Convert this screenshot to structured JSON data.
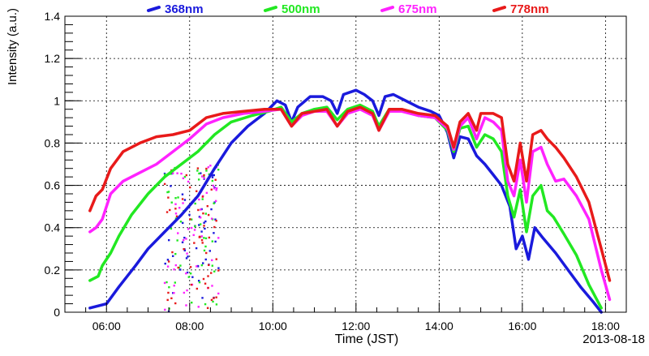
{
  "chart_data": {
    "type": "line",
    "title": "",
    "xlabel": "Time (JST)",
    "ylabel": "Intensity (a.u.)",
    "date_label": "2013-08-18",
    "xlim": [
      5.0,
      18.5
    ],
    "ylim": [
      0,
      1.4
    ],
    "grid": true,
    "legend_position": "top",
    "x_ticks": [
      {
        "v": 6,
        "label": "06:00"
      },
      {
        "v": 8,
        "label": "08:00"
      },
      {
        "v": 10,
        "label": "10:00"
      },
      {
        "v": 12,
        "label": "12:00"
      },
      {
        "v": 14,
        "label": "14:00"
      },
      {
        "v": 16,
        "label": "16:00"
      },
      {
        "v": 18,
        "label": "18:00"
      }
    ],
    "y_ticks": [
      {
        "v": 0,
        "label": "0"
      },
      {
        "v": 0.2,
        "label": "0.2"
      },
      {
        "v": 0.4,
        "label": "0.4"
      },
      {
        "v": 0.6,
        "label": "0.6"
      },
      {
        "v": 0.8,
        "label": "0.8"
      },
      {
        "v": 1.0,
        "label": "1"
      },
      {
        "v": 1.2,
        "label": "1.2"
      },
      {
        "v": 1.4,
        "label": "1.4"
      }
    ],
    "series": [
      {
        "name": "368nm",
        "color": "#1a1adc",
        "points": [
          [
            5.6,
            0.02
          ],
          [
            6.0,
            0.04
          ],
          [
            6.3,
            0.12
          ],
          [
            6.7,
            0.22
          ],
          [
            7.0,
            0.3
          ],
          [
            7.4,
            0.38
          ],
          [
            7.8,
            0.46
          ],
          [
            8.2,
            0.55
          ],
          [
            8.6,
            0.68
          ],
          [
            9.0,
            0.8
          ],
          [
            9.4,
            0.88
          ],
          [
            9.8,
            0.94
          ],
          [
            10.1,
            1.0
          ],
          [
            10.3,
            0.98
          ],
          [
            10.45,
            0.9
          ],
          [
            10.6,
            0.97
          ],
          [
            10.9,
            1.02
          ],
          [
            11.2,
            1.02
          ],
          [
            11.4,
            1.0
          ],
          [
            11.55,
            0.94
          ],
          [
            11.7,
            1.03
          ],
          [
            12.0,
            1.05
          ],
          [
            12.2,
            1.03
          ],
          [
            12.4,
            1.0
          ],
          [
            12.55,
            0.93
          ],
          [
            12.7,
            1.02
          ],
          [
            12.9,
            1.03
          ],
          [
            13.2,
            1.0
          ],
          [
            13.5,
            0.97
          ],
          [
            13.8,
            0.95
          ],
          [
            14.0,
            0.93
          ],
          [
            14.2,
            0.85
          ],
          [
            14.35,
            0.73
          ],
          [
            14.5,
            0.83
          ],
          [
            14.7,
            0.82
          ],
          [
            14.9,
            0.74
          ],
          [
            15.1,
            0.7
          ],
          [
            15.3,
            0.65
          ],
          [
            15.5,
            0.6
          ],
          [
            15.7,
            0.5
          ],
          [
            15.85,
            0.3
          ],
          [
            16.0,
            0.36
          ],
          [
            16.15,
            0.25
          ],
          [
            16.3,
            0.4
          ],
          [
            16.5,
            0.35
          ],
          [
            16.8,
            0.28
          ],
          [
            17.1,
            0.2
          ],
          [
            17.4,
            0.12
          ],
          [
            17.7,
            0.05
          ],
          [
            17.9,
            0.0
          ]
        ]
      },
      {
        "name": "500nm",
        "color": "#22e822",
        "points": [
          [
            5.6,
            0.15
          ],
          [
            5.8,
            0.17
          ],
          [
            5.9,
            0.22
          ],
          [
            6.1,
            0.28
          ],
          [
            6.3,
            0.36
          ],
          [
            6.6,
            0.46
          ],
          [
            7.0,
            0.56
          ],
          [
            7.4,
            0.64
          ],
          [
            7.8,
            0.7
          ],
          [
            8.2,
            0.76
          ],
          [
            8.6,
            0.84
          ],
          [
            9.0,
            0.9
          ],
          [
            9.5,
            0.93
          ],
          [
            9.9,
            0.95
          ],
          [
            10.2,
            0.97
          ],
          [
            10.45,
            0.9
          ],
          [
            10.7,
            0.94
          ],
          [
            11.0,
            0.96
          ],
          [
            11.3,
            0.97
          ],
          [
            11.55,
            0.91
          ],
          [
            11.8,
            0.96
          ],
          [
            12.1,
            0.98
          ],
          [
            12.4,
            0.95
          ],
          [
            12.55,
            0.88
          ],
          [
            12.8,
            0.96
          ],
          [
            13.1,
            0.96
          ],
          [
            13.5,
            0.93
          ],
          [
            13.9,
            0.92
          ],
          [
            14.2,
            0.86
          ],
          [
            14.35,
            0.76
          ],
          [
            14.5,
            0.87
          ],
          [
            14.7,
            0.88
          ],
          [
            14.9,
            0.78
          ],
          [
            15.1,
            0.84
          ],
          [
            15.3,
            0.82
          ],
          [
            15.5,
            0.76
          ],
          [
            15.65,
            0.55
          ],
          [
            15.8,
            0.45
          ],
          [
            15.95,
            0.58
          ],
          [
            16.1,
            0.38
          ],
          [
            16.25,
            0.55
          ],
          [
            16.45,
            0.6
          ],
          [
            16.6,
            0.48
          ],
          [
            16.75,
            0.45
          ],
          [
            17.0,
            0.37
          ],
          [
            17.3,
            0.27
          ],
          [
            17.6,
            0.13
          ],
          [
            17.9,
            0.02
          ]
        ]
      },
      {
        "name": "675nm",
        "color": "#ff22ff",
        "points": [
          [
            5.6,
            0.38
          ],
          [
            5.75,
            0.4
          ],
          [
            5.9,
            0.44
          ],
          [
            6.1,
            0.56
          ],
          [
            6.4,
            0.62
          ],
          [
            6.8,
            0.66
          ],
          [
            7.2,
            0.7
          ],
          [
            7.6,
            0.76
          ],
          [
            8.0,
            0.82
          ],
          [
            8.4,
            0.89
          ],
          [
            8.8,
            0.92
          ],
          [
            9.3,
            0.94
          ],
          [
            9.8,
            0.95
          ],
          [
            10.2,
            0.96
          ],
          [
            10.45,
            0.88
          ],
          [
            10.7,
            0.93
          ],
          [
            11.0,
            0.95
          ],
          [
            11.3,
            0.95
          ],
          [
            11.55,
            0.88
          ],
          [
            11.8,
            0.94
          ],
          [
            12.1,
            0.96
          ],
          [
            12.4,
            0.93
          ],
          [
            12.55,
            0.86
          ],
          [
            12.8,
            0.95
          ],
          [
            13.1,
            0.95
          ],
          [
            13.5,
            0.93
          ],
          [
            13.9,
            0.92
          ],
          [
            14.2,
            0.87
          ],
          [
            14.35,
            0.77
          ],
          [
            14.5,
            0.88
          ],
          [
            14.7,
            0.92
          ],
          [
            14.9,
            0.82
          ],
          [
            15.1,
            0.92
          ],
          [
            15.3,
            0.9
          ],
          [
            15.5,
            0.86
          ],
          [
            15.65,
            0.62
          ],
          [
            15.8,
            0.55
          ],
          [
            15.95,
            0.72
          ],
          [
            16.1,
            0.52
          ],
          [
            16.25,
            0.76
          ],
          [
            16.45,
            0.78
          ],
          [
            16.6,
            0.7
          ],
          [
            16.8,
            0.62
          ],
          [
            17.0,
            0.63
          ],
          [
            17.3,
            0.55
          ],
          [
            17.6,
            0.44
          ],
          [
            17.9,
            0.2
          ],
          [
            18.1,
            0.06
          ]
        ]
      },
      {
        "name": "778nm",
        "color": "#e81a1a",
        "points": [
          [
            5.6,
            0.48
          ],
          [
            5.75,
            0.55
          ],
          [
            5.9,
            0.58
          ],
          [
            6.1,
            0.68
          ],
          [
            6.4,
            0.76
          ],
          [
            6.8,
            0.8
          ],
          [
            7.2,
            0.83
          ],
          [
            7.6,
            0.84
          ],
          [
            8.0,
            0.86
          ],
          [
            8.4,
            0.92
          ],
          [
            8.8,
            0.94
          ],
          [
            9.3,
            0.95
          ],
          [
            9.8,
            0.96
          ],
          [
            10.2,
            0.96
          ],
          [
            10.45,
            0.88
          ],
          [
            10.7,
            0.94
          ],
          [
            11.0,
            0.95
          ],
          [
            11.3,
            0.96
          ],
          [
            11.55,
            0.88
          ],
          [
            11.8,
            0.95
          ],
          [
            12.1,
            0.97
          ],
          [
            12.4,
            0.94
          ],
          [
            12.55,
            0.86
          ],
          [
            12.8,
            0.96
          ],
          [
            13.1,
            0.96
          ],
          [
            13.5,
            0.94
          ],
          [
            13.9,
            0.93
          ],
          [
            14.2,
            0.88
          ],
          [
            14.35,
            0.78
          ],
          [
            14.5,
            0.9
          ],
          [
            14.7,
            0.94
          ],
          [
            14.9,
            0.86
          ],
          [
            15.0,
            0.94
          ],
          [
            15.3,
            0.94
          ],
          [
            15.5,
            0.92
          ],
          [
            15.65,
            0.7
          ],
          [
            15.8,
            0.62
          ],
          [
            15.95,
            0.8
          ],
          [
            16.1,
            0.62
          ],
          [
            16.25,
            0.84
          ],
          [
            16.45,
            0.86
          ],
          [
            16.6,
            0.82
          ],
          [
            16.8,
            0.78
          ],
          [
            17.0,
            0.73
          ],
          [
            17.3,
            0.64
          ],
          [
            17.6,
            0.52
          ],
          [
            17.9,
            0.3
          ],
          [
            18.1,
            0.15
          ]
        ]
      }
    ],
    "noise_band": {
      "x_range": [
        7.4,
        8.7
      ],
      "y_range": [
        0.0,
        0.7
      ]
    }
  }
}
